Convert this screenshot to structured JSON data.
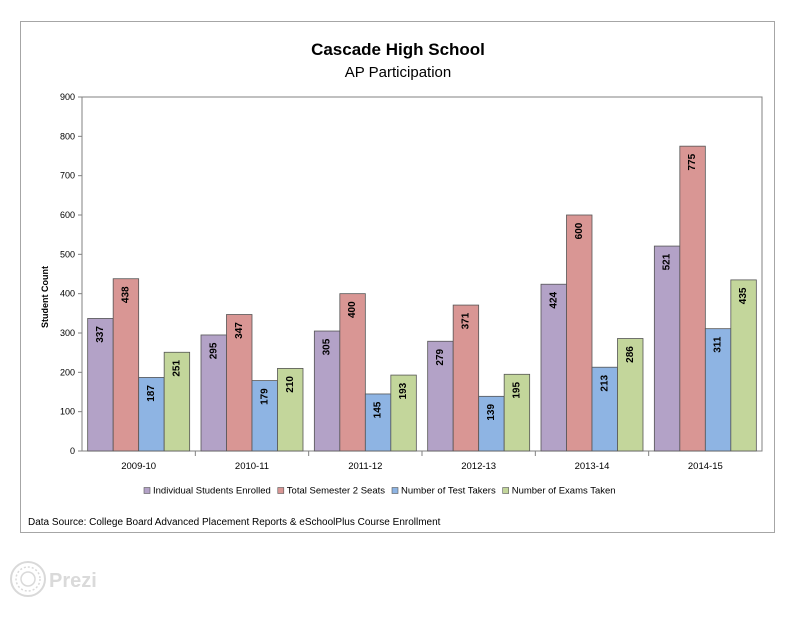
{
  "watermark": {
    "label": "Prezi"
  },
  "chart_data": {
    "type": "bar",
    "title": "Cascade High School",
    "subtitle": "AP Participation",
    "ylabel": "Student Count",
    "xlabel": "",
    "ylim": [
      0,
      900
    ],
    "ytick_step": 100,
    "grid": false,
    "legend_position": "bottom",
    "categories": [
      "2009-10",
      "2010-11",
      "2011-12",
      "2012-13",
      "2013-14",
      "2014-15"
    ],
    "series": [
      {
        "name": "Individual Students Enrolled",
        "color": "#b3a2c7",
        "values": [
          337,
          295,
          305,
          279,
          424,
          521
        ]
      },
      {
        "name": "Total Semester 2 Seats",
        "color": "#d99694",
        "values": [
          438,
          347,
          400,
          371,
          600,
          775
        ]
      },
      {
        "name": "Number of Test Takers",
        "color": "#8eb4e3",
        "values": [
          187,
          179,
          145,
          139,
          213,
          311
        ]
      },
      {
        "name": "Number of Exams Taken",
        "color": "#c3d69b",
        "values": [
          251,
          210,
          193,
          195,
          286,
          435
        ]
      }
    ],
    "source_note": "Data Source: College Board Advanced Placement Reports & eSchoolPlus Course Enrollment"
  }
}
